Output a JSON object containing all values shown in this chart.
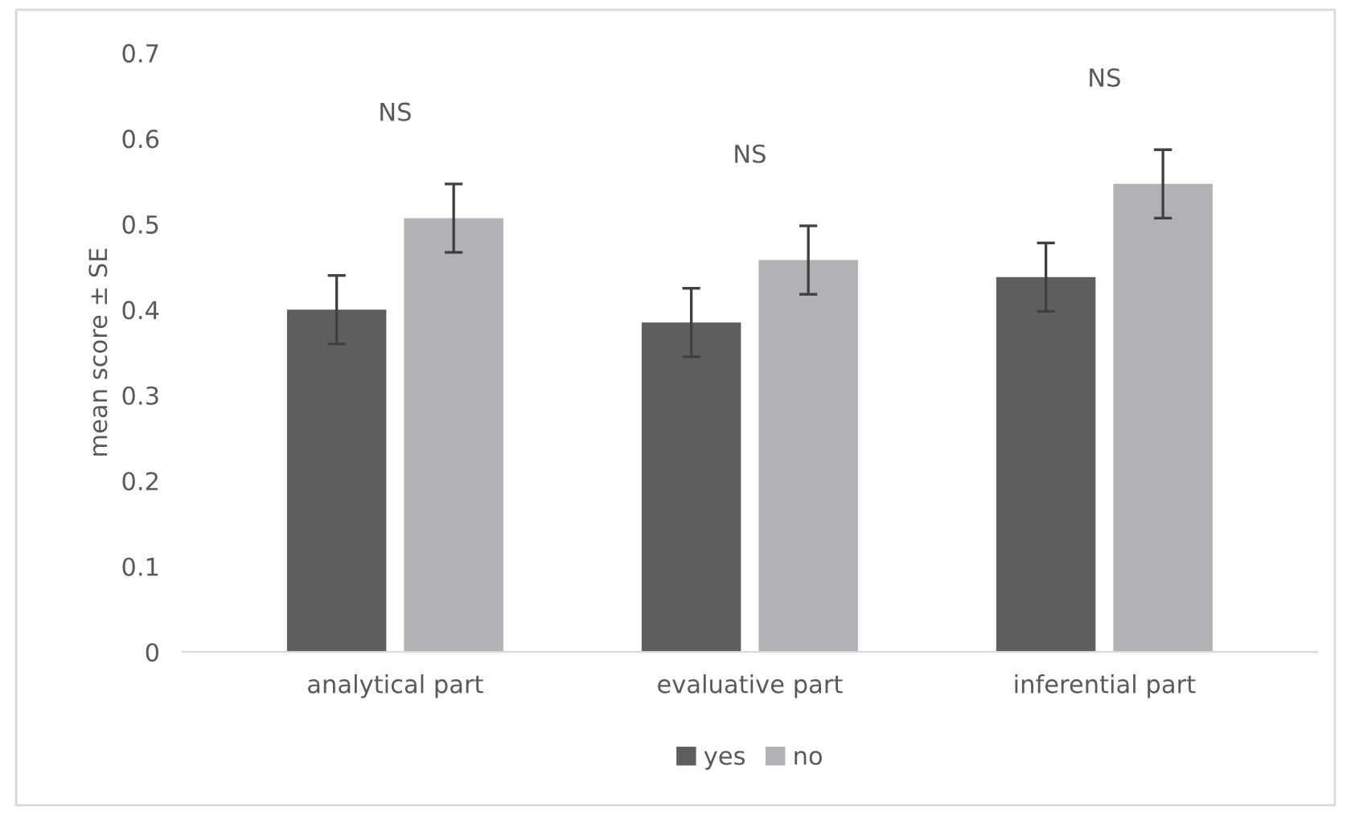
{
  "chart_data": {
    "type": "bar",
    "ylabel": "mean score ± SE",
    "categories": [
      "analytical part",
      "evaluative part",
      "inferential part"
    ],
    "series": [
      {
        "name": "yes",
        "color": "#5f5f61",
        "values": [
          0.4,
          0.385,
          0.438
        ],
        "errors": [
          0.04,
          0.04,
          0.04
        ]
      },
      {
        "name": "no",
        "color": "#b1b2b5",
        "values": [
          0.507,
          0.458,
          0.547
        ],
        "errors": [
          0.04,
          0.04,
          0.04
        ]
      }
    ],
    "ylim": [
      0,
      0.7
    ],
    "yticks": [
      {
        "value": 0,
        "label": "0"
      },
      0.1,
      0.2,
      0.3,
      0.4,
      0.5,
      0.6,
      0.7
    ],
    "grid": false,
    "legend": "bottom",
    "annotations": [
      "NS",
      "NS",
      "NS"
    ]
  }
}
